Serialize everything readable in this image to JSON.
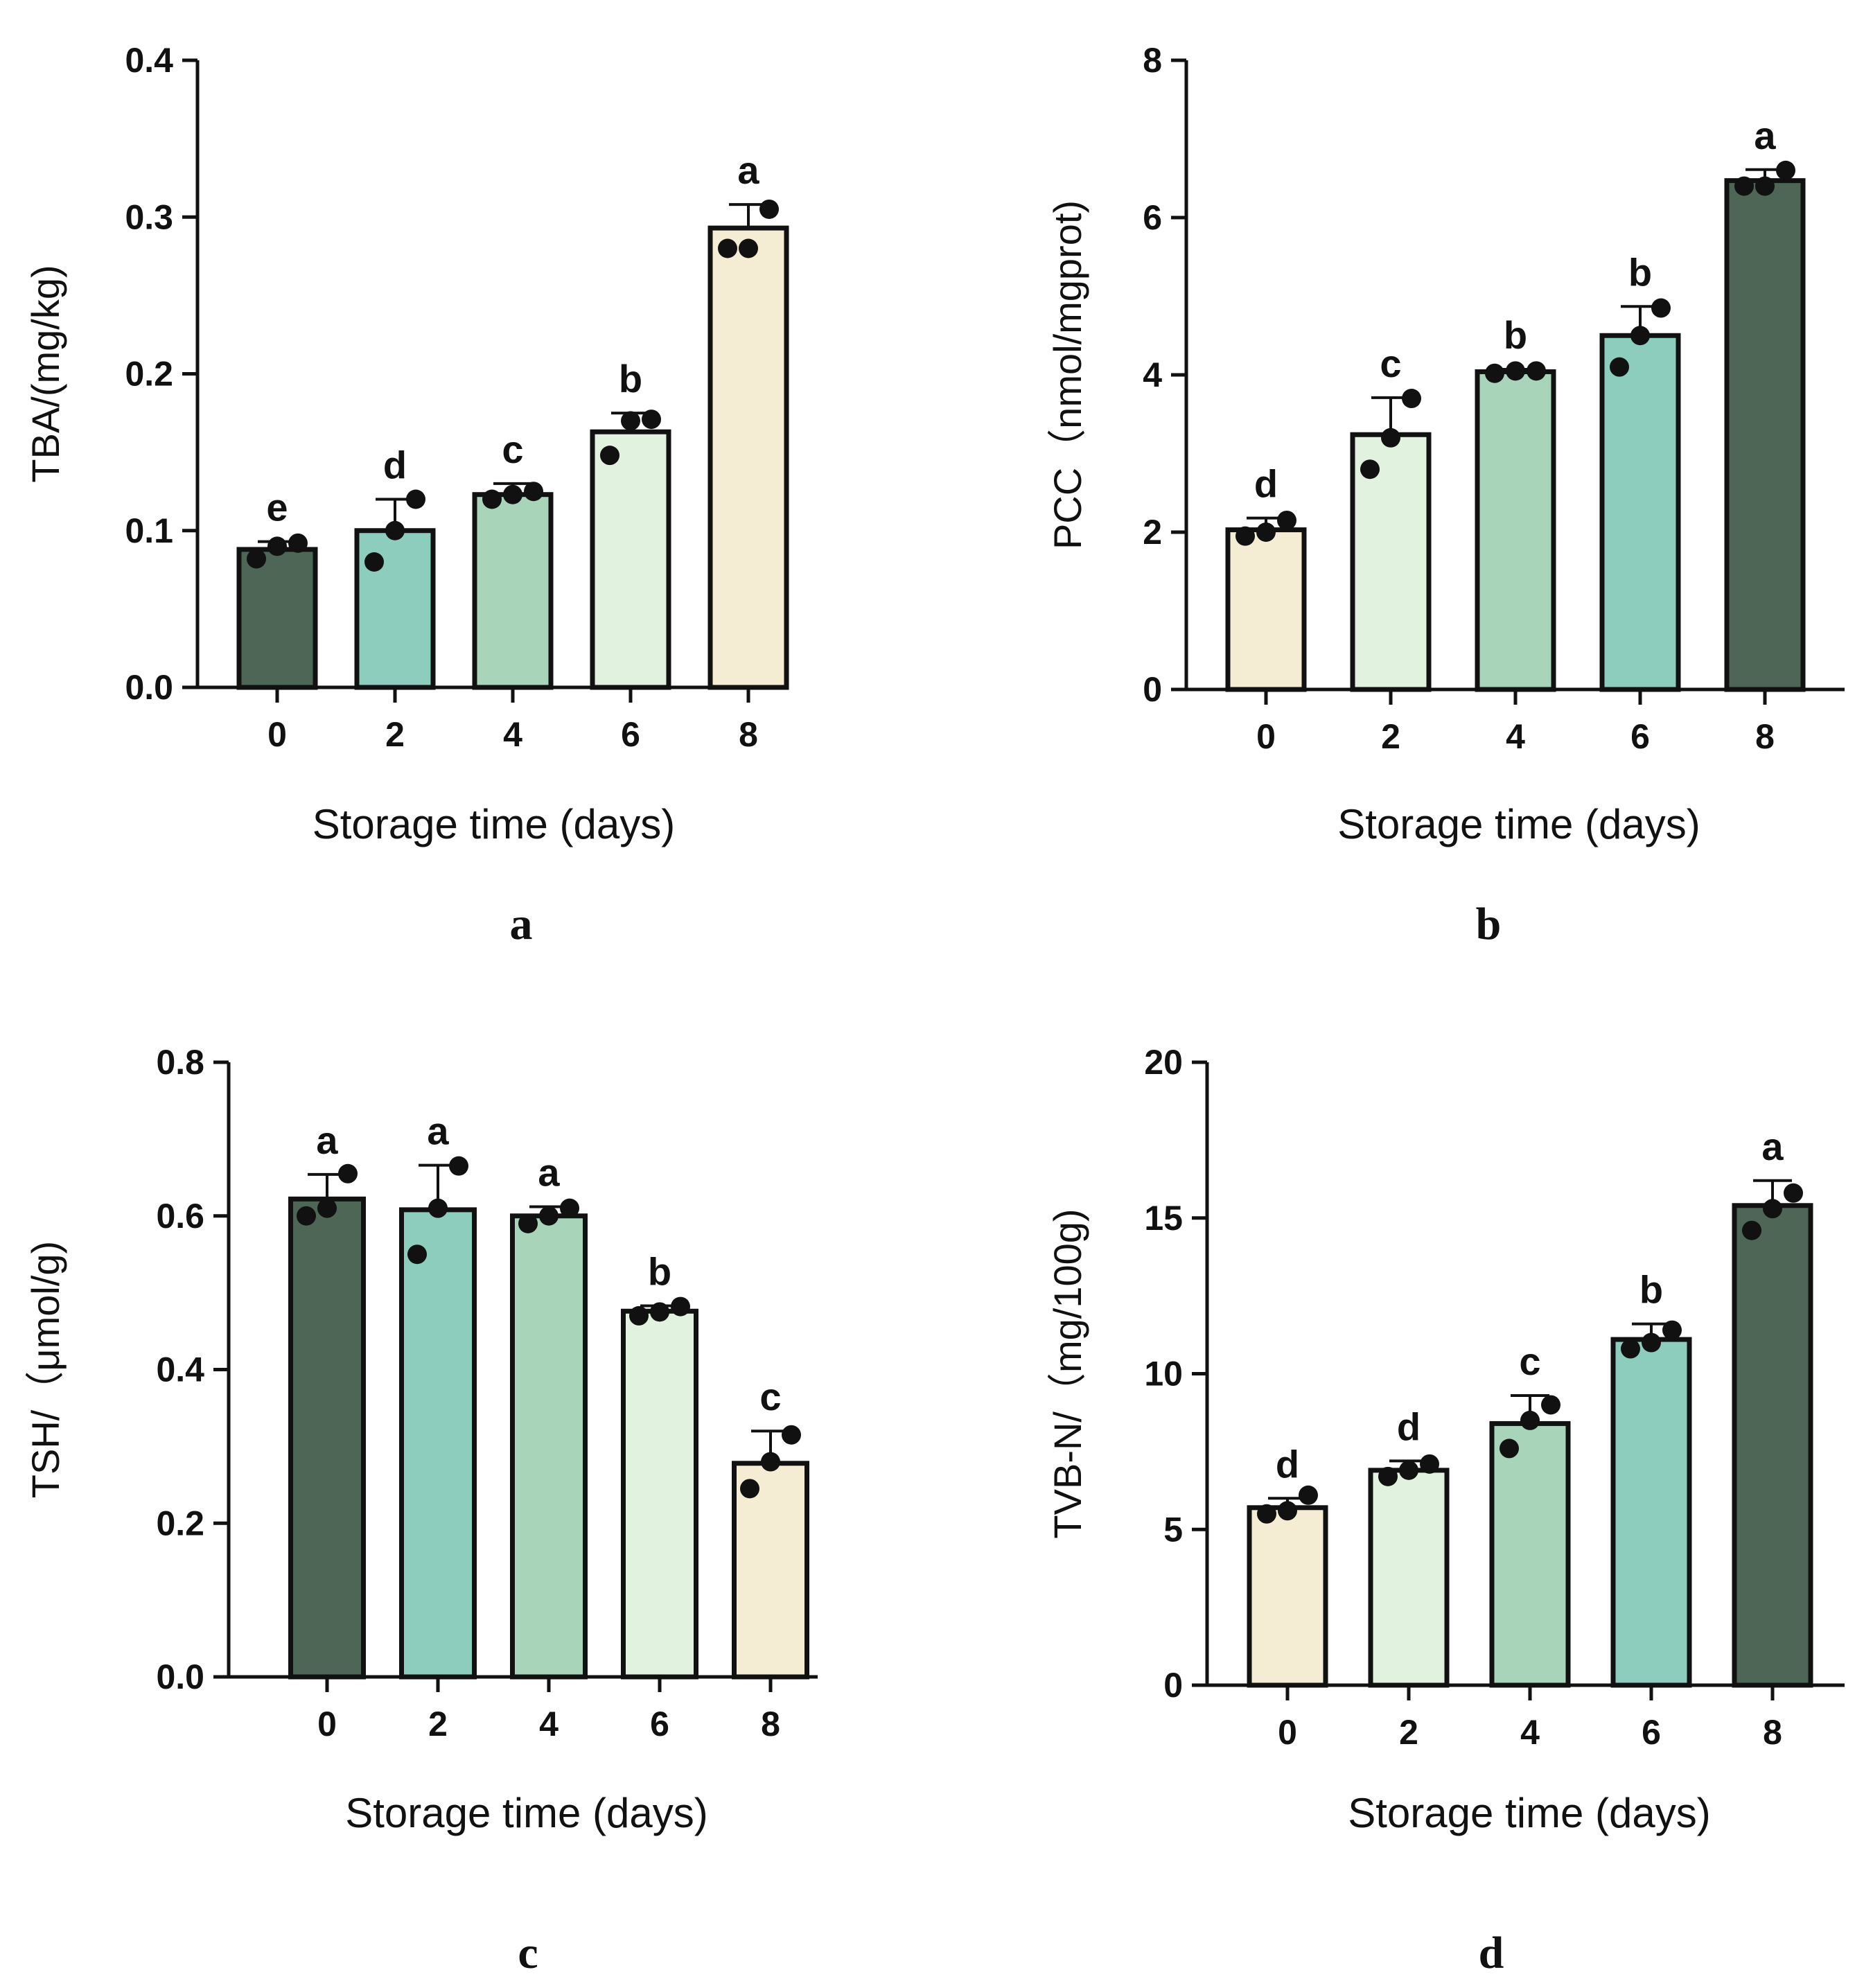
{
  "colors": {
    "c1": "#4d6656",
    "c2": "#8ccdbe",
    "c3": "#a8d5ba",
    "c4": "#e1f2df",
    "c5": "#f4ecd3",
    "ink": "#111111"
  },
  "chart_data": [
    {
      "type": "bar",
      "panel": "a",
      "ylabel": "TBA/(mg/kg)",
      "xlabel": "Storage time (days)",
      "categories": [
        "0",
        "2",
        "4",
        "6",
        "8"
      ],
      "values": [
        0.088,
        0.1,
        0.123,
        0.163,
        0.293
      ],
      "errors": [
        0.005,
        0.02,
        0.007,
        0.012,
        0.015
      ],
      "points": [
        [
          0.082,
          0.09,
          0.092
        ],
        [
          0.08,
          0.1,
          0.12
        ],
        [
          0.12,
          0.123,
          0.125
        ],
        [
          0.148,
          0.17,
          0.171
        ],
        [
          0.28,
          0.28,
          0.305
        ]
      ],
      "significance": [
        "e",
        "d",
        "c",
        "b",
        "a"
      ],
      "bar_colors": [
        "c1",
        "c2",
        "c3",
        "c4",
        "c5"
      ],
      "ylim": [
        0,
        0.4
      ],
      "yticks": [
        0.0,
        0.1,
        0.2,
        0.3,
        0.4
      ],
      "ytick_labels": [
        "0.0",
        "0.1",
        "0.2",
        "0.3",
        "0.4"
      ]
    },
    {
      "type": "bar",
      "panel": "b",
      "ylabel": "PCC（nmol/mgprot)",
      "xlabel": "Storage time (days)",
      "categories": [
        "0",
        "2",
        "4",
        "6",
        "8"
      ],
      "values": [
        2.03,
        3.24,
        4.04,
        4.5,
        6.47
      ],
      "errors": [
        0.15,
        0.47,
        0.03,
        0.37,
        0.14
      ],
      "points": [
        [
          1.95,
          2.0,
          2.15
        ],
        [
          2.8,
          3.2,
          3.7
        ],
        [
          4.02,
          4.05,
          4.05
        ],
        [
          4.1,
          4.5,
          4.85
        ],
        [
          6.4,
          6.4,
          6.6
        ]
      ],
      "significance": [
        "d",
        "c",
        "b",
        "b",
        "a"
      ],
      "bar_colors": [
        "c5",
        "c4",
        "c3",
        "c2",
        "c1"
      ],
      "ylim": [
        0,
        8
      ],
      "yticks": [
        0,
        2,
        4,
        6,
        8
      ],
      "ytick_labels": [
        "0",
        "2",
        "4",
        "6",
        "8"
      ]
    },
    {
      "type": "bar",
      "panel": "c",
      "ylabel": "TSH/（μmol/g)",
      "xlabel": "Storage time (days)",
      "categories": [
        "0",
        "2",
        "4",
        "6",
        "8"
      ],
      "values": [
        0.622,
        0.608,
        0.6,
        0.476,
        0.278
      ],
      "errors": [
        0.032,
        0.058,
        0.012,
        0.007,
        0.042
      ],
      "points": [
        [
          0.6,
          0.61,
          0.655
        ],
        [
          0.55,
          0.61,
          0.665
        ],
        [
          0.59,
          0.6,
          0.61
        ],
        [
          0.47,
          0.475,
          0.482
        ],
        [
          0.245,
          0.28,
          0.315
        ]
      ],
      "significance": [
        "a",
        "a",
        "a",
        "b",
        "c"
      ],
      "bar_colors": [
        "c1",
        "c2",
        "c3",
        "c4",
        "c5"
      ],
      "ylim": [
        0,
        0.8
      ],
      "yticks": [
        0.0,
        0.2,
        0.4,
        0.6,
        0.8
      ],
      "ytick_labels": [
        "0.0",
        "0.2",
        "0.4",
        "0.6",
        "0.8"
      ]
    },
    {
      "type": "bar",
      "panel": "d",
      "ylabel": "TVB-N/（mg/100g)",
      "xlabel": "Storage time (days)",
      "categories": [
        "0",
        "2",
        "4",
        "6",
        "8"
      ],
      "values": [
        5.7,
        6.9,
        8.4,
        11.1,
        15.4
      ],
      "errors": [
        0.3,
        0.3,
        0.9,
        0.5,
        0.8
      ],
      "points": [
        [
          5.5,
          5.6,
          6.1
        ],
        [
          6.7,
          6.9,
          7.1
        ],
        [
          7.6,
          8.5,
          9.0
        ],
        [
          10.8,
          11.0,
          11.4
        ],
        [
          14.6,
          15.3,
          15.8
        ]
      ],
      "significance": [
        "d",
        "d",
        "c",
        "b",
        "a"
      ],
      "bar_colors": [
        "c5",
        "c4",
        "c3",
        "c2",
        "c1"
      ],
      "ylim": [
        0,
        20
      ],
      "yticks": [
        0,
        5,
        10,
        15,
        20
      ],
      "ytick_labels": [
        "0",
        "5",
        "10",
        "15",
        "20"
      ]
    }
  ]
}
